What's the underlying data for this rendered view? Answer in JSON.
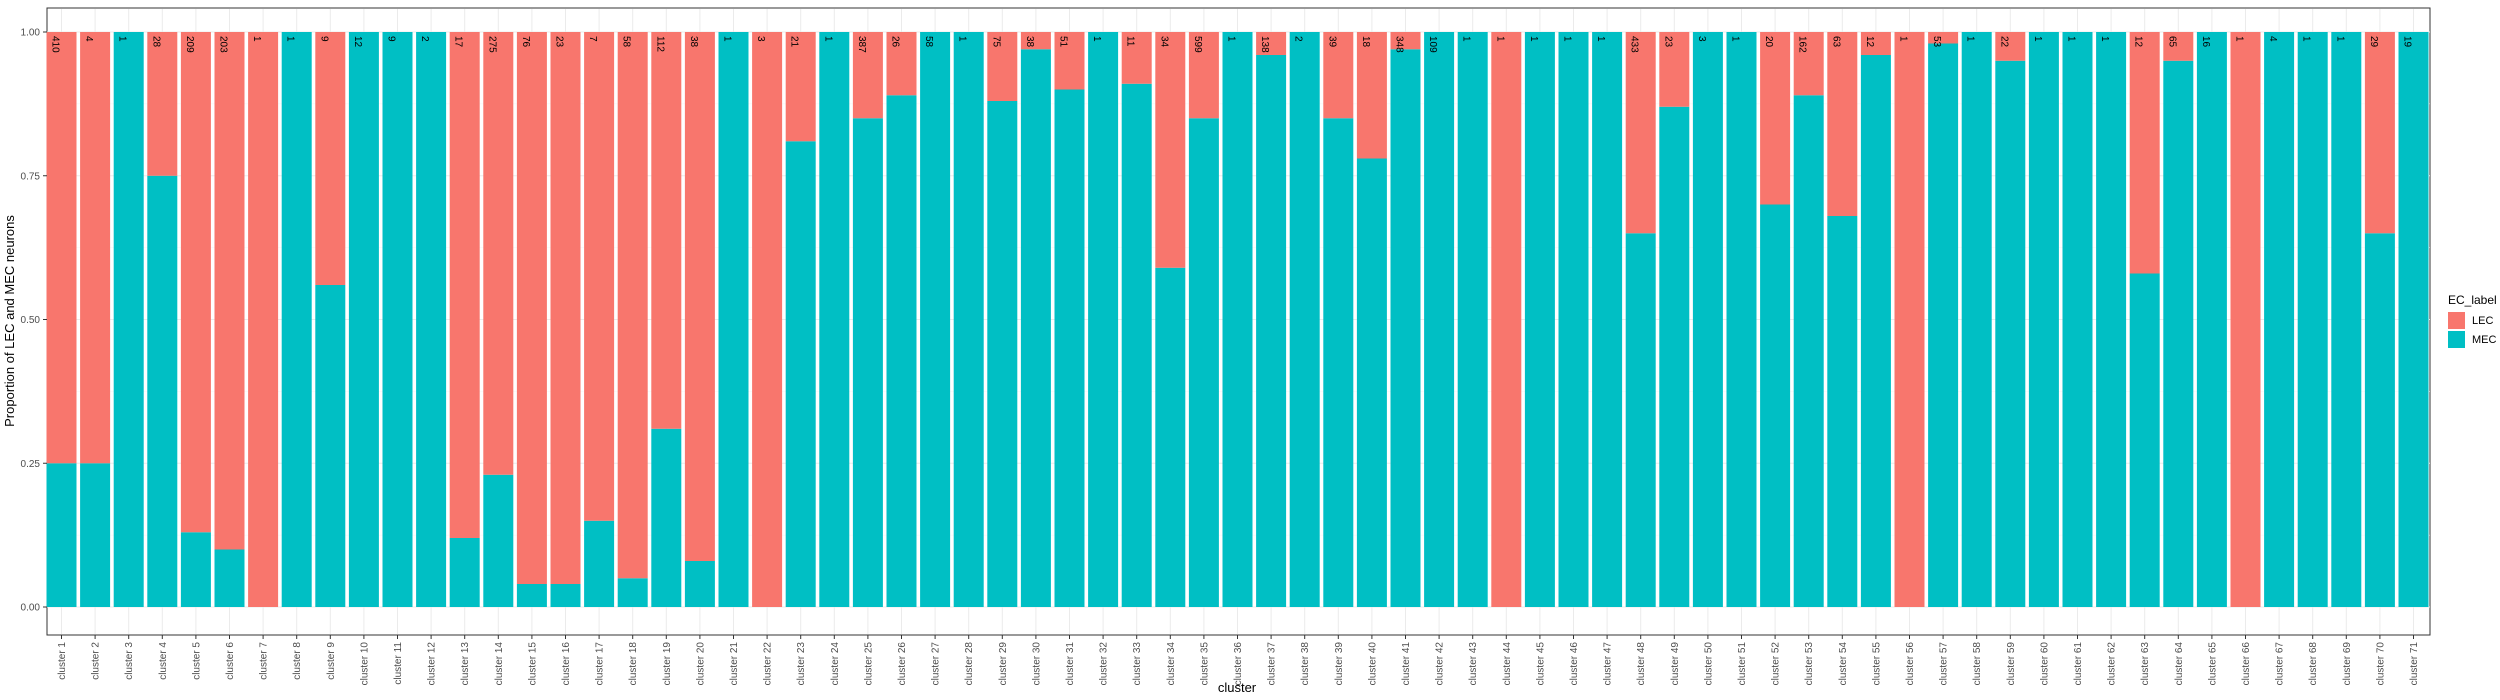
{
  "chart_data": {
    "type": "bar",
    "stacked": true,
    "xlabel": "cluster",
    "ylabel": "Proportion of LEC and MEC neurons",
    "ylim": [
      0,
      1
    ],
    "yticks": [
      "0.00",
      "0.25",
      "0.50",
      "0.75",
      "1.00"
    ],
    "legend": {
      "title": "EC_label",
      "position": "right",
      "entries": [
        {
          "name": "LEC",
          "color": "#F8766D"
        },
        {
          "name": "MEC",
          "color": "#00BFC4"
        }
      ]
    },
    "categories": [
      "cluster 1",
      "cluster 2",
      "cluster 3",
      "cluster 4",
      "cluster 5",
      "cluster 6",
      "cluster 7",
      "cluster 8",
      "cluster 9",
      "cluster 10",
      "cluster 11",
      "cluster 12",
      "cluster 13",
      "cluster 14",
      "cluster 15",
      "cluster 16",
      "cluster 17",
      "cluster 18",
      "cluster 19",
      "cluster 20",
      "cluster 21",
      "cluster 22",
      "cluster 23",
      "cluster 24",
      "cluster 25",
      "cluster 26",
      "cluster 27",
      "cluster 28",
      "cluster 29",
      "cluster 30",
      "cluster 31",
      "cluster 32",
      "cluster 33",
      "cluster 34",
      "cluster 35",
      "cluster 36",
      "cluster 37",
      "cluster 38",
      "cluster 39",
      "cluster 40",
      "cluster 41",
      "cluster 42",
      "cluster 43",
      "cluster 44",
      "cluster 45",
      "cluster 46",
      "cluster 47",
      "cluster 48",
      "cluster 49",
      "cluster 50",
      "cluster 51",
      "cluster 52",
      "cluster 53",
      "cluster 54",
      "cluster 55",
      "cluster 56",
      "cluster 57",
      "cluster 58",
      "cluster 59",
      "cluster 60",
      "cluster 61",
      "cluster 62",
      "cluster 63",
      "cluster 64",
      "cluster 65",
      "cluster 66",
      "cluster 67",
      "cluster 68",
      "cluster 69",
      "cluster 70",
      "cluster 71"
    ],
    "series": [
      {
        "name": "MEC",
        "color": "#00BFC4",
        "values": [
          0.25,
          0.25,
          1.0,
          0.75,
          0.13,
          0.1,
          0.0,
          1.0,
          0.56,
          1.0,
          1.0,
          1.0,
          0.12,
          0.23,
          0.04,
          0.04,
          0.15,
          0.05,
          0.31,
          0.08,
          1.0,
          0.0,
          0.81,
          1.0,
          0.85,
          0.89,
          1.0,
          1.0,
          0.88,
          0.97,
          0.9,
          1.0,
          0.91,
          0.59,
          0.85,
          1.0,
          0.96,
          1.0,
          0.85,
          0.78,
          0.97,
          1.0,
          1.0,
          0.0,
          1.0,
          1.0,
          1.0,
          0.65,
          0.87,
          1.0,
          1.0,
          0.7,
          0.89,
          0.68,
          0.96,
          0.0,
          0.98,
          1.0,
          0.95,
          1.0,
          1.0,
          1.0,
          0.58,
          0.95,
          1.0,
          0.0,
          1.0,
          1.0,
          1.0,
          0.65,
          1.0
        ]
      },
      {
        "name": "LEC",
        "color": "#F8766D",
        "values": [
          0.75,
          0.75,
          0.0,
          0.25,
          0.87,
          0.9,
          1.0,
          0.0,
          0.44,
          0.0,
          0.0,
          0.0,
          0.88,
          0.77,
          0.96,
          0.96,
          0.85,
          0.95,
          0.69,
          0.92,
          0.0,
          1.0,
          0.19,
          0.0,
          0.15,
          0.11,
          0.0,
          0.0,
          0.12,
          0.03,
          0.1,
          0.0,
          0.09,
          0.41,
          0.15,
          0.0,
          0.04,
          0.0,
          0.15,
          0.22,
          0.03,
          0.0,
          0.0,
          1.0,
          0.0,
          0.0,
          0.0,
          0.35,
          0.13,
          0.0,
          0.0,
          0.3,
          0.11,
          0.32,
          0.04,
          1.0,
          0.02,
          0.0,
          0.05,
          0.0,
          0.0,
          0.0,
          0.42,
          0.05,
          0.0,
          1.0,
          0.0,
          0.0,
          0.0,
          0.35,
          0.0
        ]
      }
    ],
    "count_labels": [
      "410",
      "4",
      "1",
      "28",
      "209",
      "203",
      "1",
      "1",
      "9",
      "12",
      "9",
      "2",
      "17",
      "275",
      "76",
      "23",
      "7",
      "58",
      "112",
      "38",
      "1",
      "3",
      "21",
      "1",
      "387",
      "26",
      "58",
      "1",
      "75",
      "38",
      "51",
      "1",
      "11",
      "34",
      "599",
      "1",
      "138",
      "2",
      "39",
      "18",
      "348",
      "109",
      "1",
      "1",
      "1",
      "1",
      "1",
      "433",
      "23",
      "3",
      "1",
      "20",
      "162",
      "63",
      "12",
      "1",
      "53",
      "1",
      "22",
      "1",
      "1",
      "1",
      "12",
      "65",
      "16",
      "1",
      "4",
      "1",
      "1",
      "29",
      "19"
    ]
  }
}
